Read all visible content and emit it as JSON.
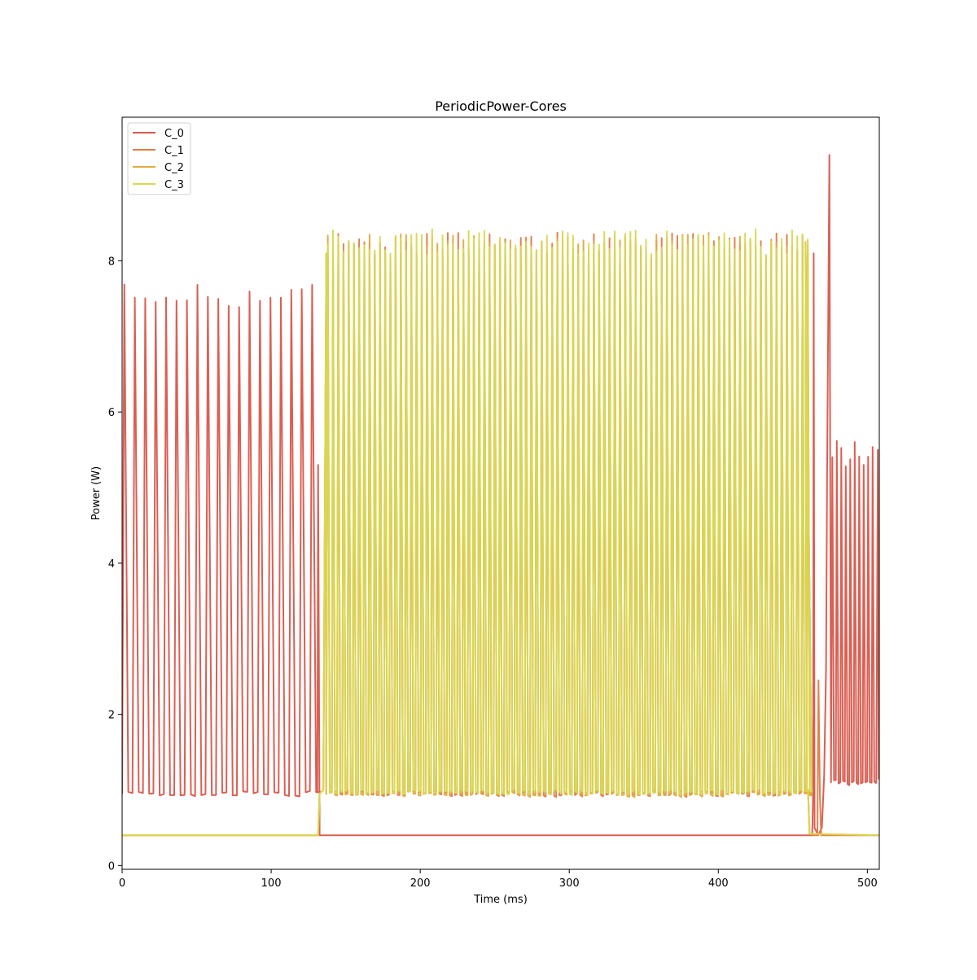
{
  "chart_data": {
    "type": "line",
    "title": "PeriodicPower-Cores",
    "xlabel": "Time (ms)",
    "ylabel": "Power (W)",
    "xlim": [
      0,
      508
    ],
    "ylim": [
      -0.05,
      9.9
    ],
    "xticks": [
      0,
      100,
      200,
      300,
      400,
      500
    ],
    "yticks": [
      0,
      2,
      4,
      6,
      8
    ],
    "grid": false,
    "legend_position": "top-left",
    "series": [
      {
        "name": "C_0",
        "color": "#d9564a",
        "pattern": {
          "idle_level": 0.4,
          "segments": [
            {
              "from": 0,
              "to": 131,
              "period": 7.0,
              "peak": 7.55,
              "trough": 0.95,
              "first_peak": 1.5
            },
            {
              "from": 133,
              "to": 470,
              "flat": 0.4
            },
            {
              "from": 474,
              "to": 508,
              "period": 3.0,
              "peak": 5.45,
              "trough": 1.1,
              "first_peak": 475.5
            }
          ],
          "spikes": [
            {
              "x": 131.5,
              "y": 5.3
            },
            {
              "x": 464,
              "y": 8.1
            },
            {
              "x": 474.5,
              "y": 9.4
            },
            {
              "x": 507,
              "y": 4.45
            }
          ]
        }
      },
      {
        "name": "C_1",
        "color": "#e07b45",
        "pattern": {
          "idle_level": 0.4,
          "active_from": 133,
          "active_to": 461,
          "period": 3.5,
          "peak": 8.2,
          "trough": 0.95,
          "first_peak": 138
        }
      },
      {
        "name": "C_2",
        "color": "#e0aa3e",
        "pattern": {
          "idle_level": 0.4,
          "active_from": 133,
          "active_to": 461,
          "period": 3.5,
          "peak": 8.2,
          "trough": 0.95,
          "first_peak": 138
        }
      },
      {
        "name": "C_3",
        "color": "#d8d850",
        "pattern": {
          "idle_level": 0.4,
          "active_from": 133,
          "active_to": 461,
          "period": 3.5,
          "peak": 8.25,
          "trough": 0.97,
          "first_peak": 138
        }
      }
    ]
  }
}
